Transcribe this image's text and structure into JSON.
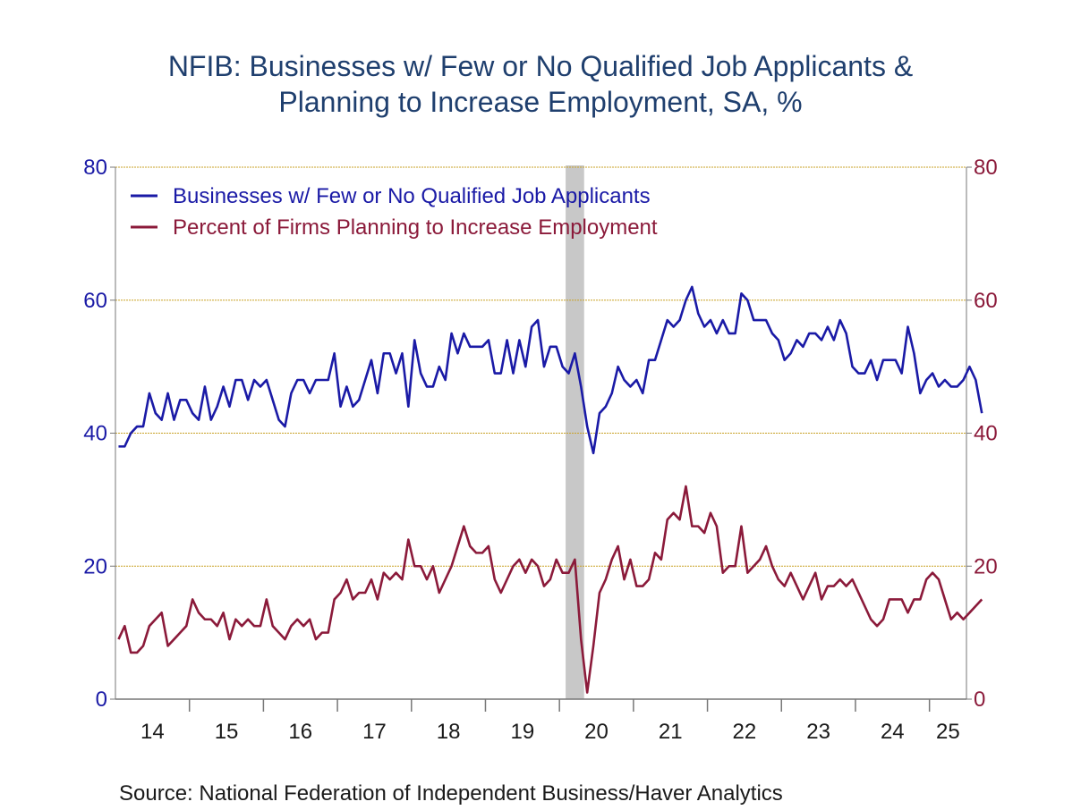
{
  "chart_data": {
    "type": "line",
    "title": "NFIB: Businesses w/ Few or No Qualified Job Applicants & Planning to Increase Employment, SA, %",
    "title_lines": [
      "NFIB: Businesses w/ Few or No Qualified Job Applicants &",
      "Planning to Increase Employment, SA, %"
    ],
    "source": "Source:  National Federation of Independent Business/Haver Analytics",
    "ylim": [
      0,
      80
    ],
    "y_ticks_left": [
      "0",
      "20",
      "40",
      "60",
      "80"
    ],
    "y_ticks_right": [
      "0",
      "20",
      "40",
      "60",
      "80"
    ],
    "x_tick_labels": [
      "14",
      "15",
      "16",
      "17",
      "18",
      "19",
      "20",
      "21",
      "22",
      "23",
      "24",
      "25"
    ],
    "x_range": [
      "2014-01",
      "2025-06"
    ],
    "grid": "horizontal",
    "legend_position": "top-left",
    "recession_shading": {
      "start": "2020-02",
      "end": "2020-04",
      "color": "#c8c8c8"
    },
    "colors": {
      "blue": "#1a1aa6",
      "red": "#8b1a3a",
      "grid": "#c9a227",
      "axis": "#777777"
    },
    "series": [
      {
        "name": "Businesses w/ Few or No Qualified Job Applicants",
        "color": "#1a1aa6",
        "start": "2014-01",
        "frequency": "monthly",
        "values": [
          38,
          38,
          40,
          41,
          41,
          46,
          43,
          42,
          46,
          42,
          45,
          45,
          43,
          42,
          47,
          42,
          44,
          47,
          44,
          48,
          48,
          45,
          48,
          47,
          48,
          45,
          42,
          41,
          46,
          48,
          48,
          46,
          48,
          48,
          48,
          52,
          44,
          47,
          44,
          45,
          48,
          51,
          46,
          52,
          52,
          49,
          52,
          44,
          54,
          49,
          47,
          47,
          50,
          48,
          55,
          52,
          55,
          53,
          53,
          53,
          54,
          49,
          49,
          54,
          49,
          54,
          50,
          56,
          57,
          50,
          53,
          53,
          50,
          49,
          52,
          47,
          41,
          37,
          43,
          44,
          46,
          50,
          48,
          47,
          48,
          46,
          51,
          51,
          54,
          57,
          56,
          57,
          60,
          62,
          58,
          56,
          57,
          55,
          57,
          55,
          55,
          61,
          60,
          57,
          57,
          57,
          55,
          54,
          51,
          52,
          54,
          53,
          55,
          55,
          54,
          56,
          54,
          57,
          55,
          50,
          49,
          49,
          51,
          48,
          51,
          51,
          51,
          49,
          56,
          52,
          46,
          48,
          49,
          47,
          48,
          47,
          47,
          48,
          50,
          48,
          43
        ]
      },
      {
        "name": "Percent of Firms Planning to Increase Employment",
        "color": "#8b1a3a",
        "start": "2014-01",
        "frequency": "monthly",
        "values": [
          9,
          11,
          7,
          7,
          8,
          11,
          12,
          13,
          8,
          9,
          10,
          11,
          15,
          13,
          12,
          12,
          11,
          13,
          9,
          12,
          11,
          12,
          11,
          11,
          15,
          11,
          10,
          9,
          11,
          12,
          11,
          12,
          9,
          10,
          10,
          15,
          16,
          18,
          15,
          16,
          16,
          18,
          15,
          19,
          18,
          19,
          18,
          24,
          20,
          20,
          18,
          20,
          16,
          18,
          20,
          23,
          26,
          23,
          22,
          22,
          23,
          18,
          16,
          18,
          20,
          21,
          19,
          21,
          20,
          17,
          18,
          21,
          19,
          19,
          21,
          9,
          1,
          8,
          16,
          18,
          21,
          23,
          18,
          21,
          17,
          17,
          18,
          22,
          21,
          27,
          28,
          27,
          32,
          26,
          26,
          25,
          28,
          26,
          19,
          20,
          20,
          26,
          19,
          20,
          21,
          23,
          20,
          18,
          17,
          19,
          17,
          15,
          17,
          19,
          15,
          17,
          17,
          18,
          17,
          18,
          16,
          14,
          12,
          11,
          12,
          15,
          15,
          15,
          13,
          15,
          15,
          18,
          19,
          18,
          15,
          12,
          13,
          12,
          13,
          14,
          15
        ]
      }
    ]
  }
}
